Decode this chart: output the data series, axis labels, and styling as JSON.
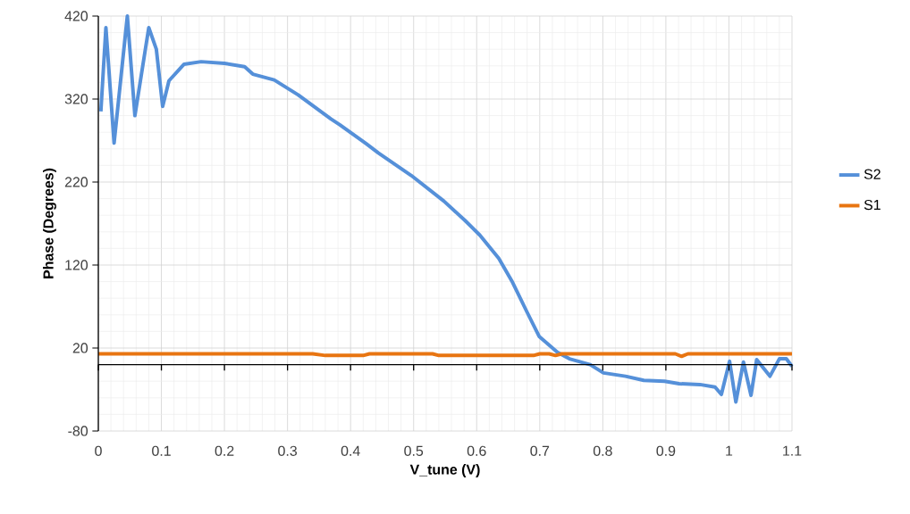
{
  "chart_data": {
    "type": "line",
    "xlabel": "V_tune (V)",
    "ylabel": "Phase (Degrees)",
    "xlim": [
      0,
      1.1
    ],
    "xticks": [
      0,
      0.1,
      0.2,
      0.3,
      0.4,
      0.5,
      0.6,
      0.7,
      0.8,
      0.9,
      1,
      1.1
    ],
    "ylim": [
      -80,
      420
    ],
    "yticks": [
      -80,
      20,
      120,
      220,
      320,
      420
    ],
    "grid": true,
    "legend": "right",
    "marker": "none",
    "line_style": "solid",
    "series": [
      {
        "name": "S2",
        "color": "#5590d9",
        "x": [
          0.004,
          0.012,
          0.025,
          0.046,
          0.058,
          0.08,
          0.092,
          0.102,
          0.112,
          0.136,
          0.163,
          0.2,
          0.232,
          0.245,
          0.279,
          0.317,
          0.369,
          0.383,
          0.425,
          0.444,
          0.496,
          0.548,
          0.581,
          0.605,
          0.635,
          0.657,
          0.68,
          0.699,
          0.728,
          0.747,
          0.78,
          0.801,
          0.836,
          0.865,
          0.898,
          0.921,
          0.954,
          0.978,
          0.988,
          1.001,
          1.011,
          1.023,
          1.035,
          1.044,
          1.065,
          1.08,
          1.091,
          1.1
        ],
        "values": [
          305,
          406,
          267,
          420,
          300,
          406,
          380,
          311,
          342,
          362,
          365,
          363,
          359,
          350,
          343,
          325,
          296,
          289,
          266,
          255,
          228,
          197,
          174,
          156,
          128,
          99,
          63,
          34,
          15,
          7,
          0,
          -10,
          -14,
          -19,
          -20,
          -23,
          -24,
          -27,
          -36,
          4,
          -45,
          3,
          -37,
          6,
          -14,
          7,
          7,
          -2
        ]
      },
      {
        "name": "S1",
        "color": "#e87511",
        "x": [
          0,
          0.34,
          0.36,
          0.42,
          0.43,
          0.53,
          0.54,
          0.69,
          0.7,
          0.715,
          0.725,
          0.735,
          0.915,
          0.925,
          0.935,
          1.1
        ],
        "values": [
          13,
          13,
          11,
          11,
          13,
          13,
          11,
          11,
          13,
          13,
          11,
          13,
          13,
          10,
          13,
          13
        ]
      }
    ]
  }
}
